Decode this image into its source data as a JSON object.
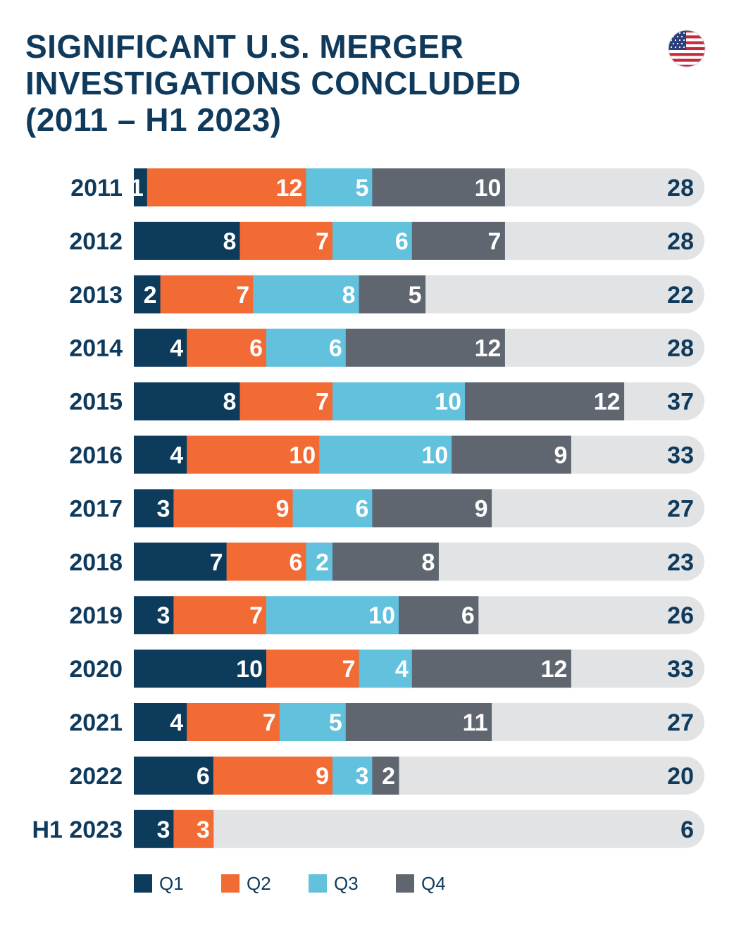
{
  "title_lines": [
    "SIGNIFICANT U.S. MERGER",
    "INVESTIGATIONS CONCLUDED",
    "(2011 – H1 2023)"
  ],
  "flag_icon": "us-flag-icon",
  "colors": {
    "Q1": "#0d3b5c",
    "Q2": "#f26a34",
    "Q3": "#62c1dc",
    "Q4": "#5f6670",
    "track": "#e2e3e5",
    "text_dark": "#0f3a5c",
    "text_light": "#ffffff"
  },
  "chart_data": {
    "type": "bar",
    "orientation": "horizontal",
    "stacked": true,
    "categories": [
      "2011",
      "2012",
      "2013",
      "2014",
      "2015",
      "2016",
      "2017",
      "2018",
      "2019",
      "2020",
      "2021",
      "2022",
      "H1 2023"
    ],
    "series": [
      {
        "name": "Q1",
        "values": [
          1,
          8,
          2,
          4,
          8,
          4,
          3,
          7,
          3,
          10,
          4,
          6,
          3
        ]
      },
      {
        "name": "Q2",
        "values": [
          12,
          7,
          7,
          6,
          7,
          10,
          9,
          6,
          7,
          7,
          7,
          9,
          3
        ]
      },
      {
        "name": "Q3",
        "values": [
          5,
          6,
          8,
          6,
          10,
          10,
          6,
          2,
          10,
          4,
          5,
          3,
          0
        ]
      },
      {
        "name": "Q4",
        "values": [
          10,
          7,
          5,
          12,
          12,
          9,
          9,
          8,
          6,
          12,
          11,
          2,
          0
        ]
      }
    ],
    "totals": [
      28,
      28,
      22,
      28,
      37,
      33,
      27,
      23,
      26,
      33,
      27,
      20,
      6
    ],
    "legend_position": "bottom",
    "grid": false
  }
}
